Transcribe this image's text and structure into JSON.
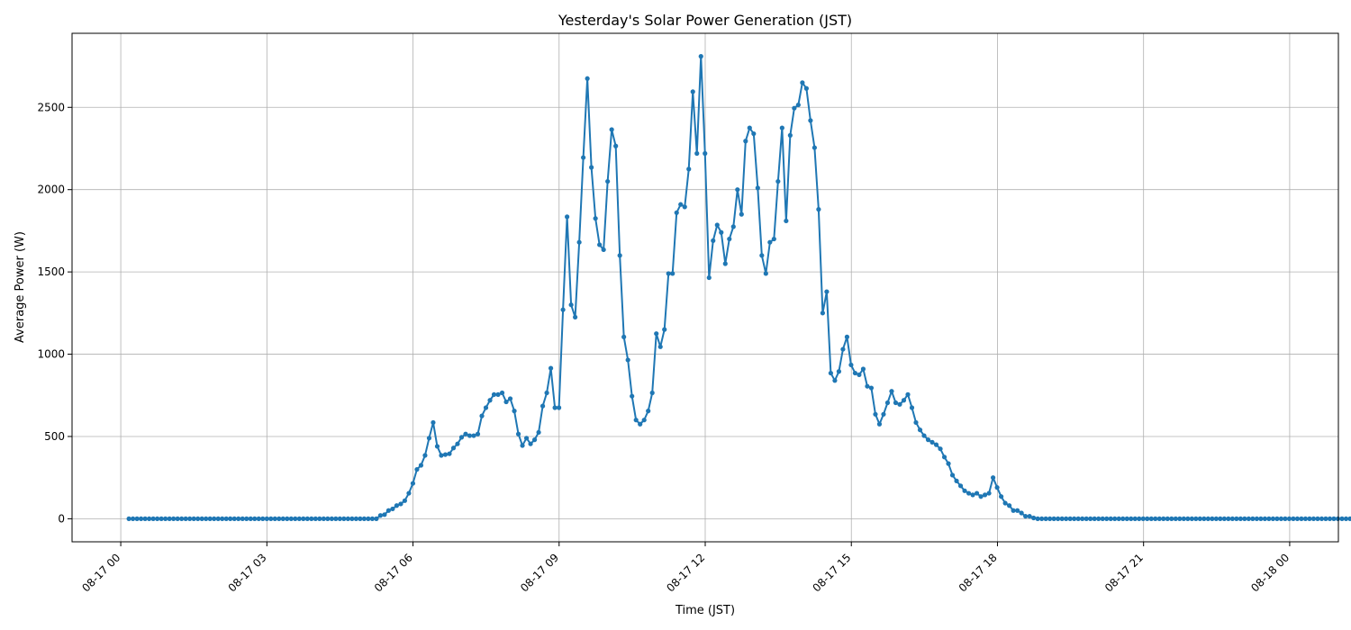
{
  "chart_data": {
    "type": "line",
    "title": "Yesterday's Solar Power Generation (JST)",
    "xlabel": "Time (JST)",
    "ylabel": "Average Power (W)",
    "x_tick_labels": [
      "08-17 00",
      "08-17 03",
      "08-17 06",
      "08-17 09",
      "08-17 12",
      "08-17 15",
      "08-17 18",
      "08-17 21",
      "08-18 00"
    ],
    "y_ticks": [
      0,
      500,
      1000,
      1500,
      2000,
      2500
    ],
    "xlim_hours": [
      -1.0,
      25.0
    ],
    "ylim": [
      -140,
      2950
    ],
    "grid": true,
    "color": "#1f77b4",
    "series": [
      {
        "x_start_hour": 0.167,
        "x_step_hours": 0.0833,
        "values": [
          0,
          0,
          0,
          0,
          0,
          0,
          0,
          0,
          0,
          0,
          0,
          0,
          0,
          0,
          0,
          0,
          0,
          0,
          0,
          0,
          0,
          0,
          0,
          0,
          0,
          0,
          0,
          0,
          0,
          0,
          0,
          0,
          0,
          0,
          0,
          0,
          0,
          0,
          0,
          0,
          0,
          0,
          0,
          0,
          0,
          0,
          0,
          0,
          0,
          0,
          0,
          0,
          0,
          0,
          0,
          0,
          0,
          0,
          0,
          0,
          0,
          0,
          20,
          25,
          50,
          60,
          80,
          90,
          110,
          155,
          215,
          300,
          325,
          385,
          490,
          585,
          440,
          385,
          390,
          395,
          430,
          455,
          495,
          515,
          505,
          505,
          515,
          625,
          675,
          720,
          755,
          755,
          765,
          710,
          730,
          655,
          515,
          445,
          490,
          455,
          480,
          525,
          685,
          765,
          915,
          675,
          675,
          1270,
          1835,
          1300,
          1225,
          1680,
          2195,
          2675,
          2135,
          1825,
          1665,
          1635,
          2050,
          2365,
          2265,
          1600,
          1105,
          965,
          745,
          600,
          575,
          600,
          655,
          765,
          1125,
          1045,
          1150,
          1490,
          1490,
          1860,
          1910,
          1895,
          2125,
          2595,
          2220,
          2810,
          2220,
          1465,
          1690,
          1785,
          1740,
          1550,
          1700,
          1775,
          2000,
          1850,
          2295,
          2375,
          2340,
          2010,
          1600,
          1490,
          1680,
          1700,
          2050,
          2375,
          1810,
          2330,
          2495,
          2515,
          2650,
          2615,
          2420,
          2255,
          1880,
          1250,
          1380,
          885,
          840,
          895,
          1030,
          1105,
          935,
          885,
          875,
          910,
          805,
          795,
          635,
          575,
          635,
          705,
          775,
          705,
          695,
          720,
          755,
          675,
          585,
          540,
          505,
          480,
          465,
          450,
          425,
          375,
          335,
          265,
          230,
          200,
          170,
          155,
          145,
          155,
          135,
          145,
          155,
          250,
          190,
          135,
          95,
          80,
          50,
          50,
          35,
          15,
          15,
          5,
          0,
          0,
          0,
          0,
          0,
          0,
          0,
          0,
          0,
          0,
          0,
          0,
          0,
          0,
          0,
          0,
          0,
          0,
          0,
          0,
          0,
          0,
          0,
          0,
          0,
          0,
          0,
          0,
          0,
          0,
          0,
          0,
          0,
          0,
          0,
          0,
          0,
          0,
          0,
          0,
          0,
          0,
          0,
          0,
          0,
          0,
          0,
          0,
          0,
          0,
          0,
          0,
          0,
          0,
          0,
          0,
          0,
          0,
          0,
          0,
          0,
          0,
          0,
          0,
          0,
          0,
          0,
          0,
          0,
          0,
          0,
          0,
          0,
          0,
          0,
          0,
          0,
          0
        ]
      }
    ]
  }
}
